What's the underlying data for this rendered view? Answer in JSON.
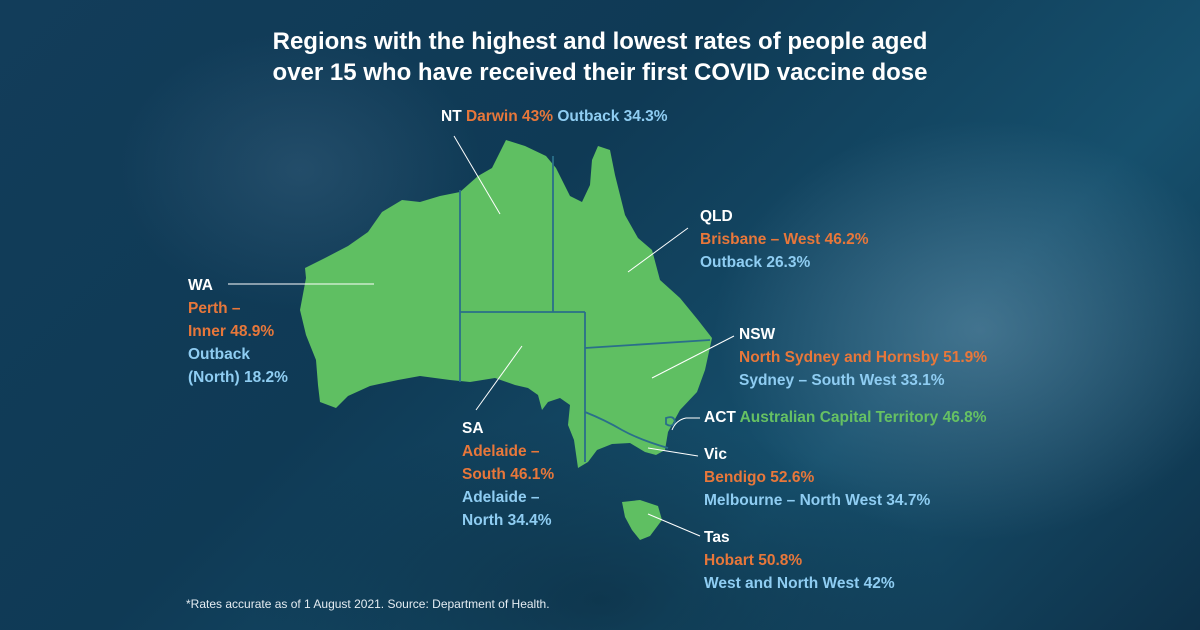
{
  "title": {
    "line1": "Regions with the highest and lowest rates of people aged",
    "line2": "over 15 who have received their first COVID vaccine dose"
  },
  "colors": {
    "land": "#5fbf62",
    "border": "#2a6f8a",
    "highest": "#e8773a",
    "lowest": "#8fcdf2",
    "act": "#66c163",
    "background": "#0f3550"
  },
  "regions": {
    "nt": {
      "state": "NT",
      "highest": "Darwin 43%",
      "lowest": "Outback 34.3%"
    },
    "qld": {
      "state": "QLD",
      "highest": "Brisbane – West 46.2%",
      "lowest": "Outback 26.3%"
    },
    "wa": {
      "state": "WA",
      "highest_l1": "Perth –",
      "highest_l2": "Inner 48.9%",
      "lowest_l1": "Outback",
      "lowest_l2": "(North) 18.2%"
    },
    "nsw": {
      "state": "NSW",
      "highest": "North Sydney and Hornsby 51.9%",
      "lowest": "Sydney – South West 33.1%"
    },
    "act": {
      "state": "ACT",
      "region": "Australian Capital Territory 46.8%"
    },
    "sa": {
      "state": "SA",
      "highest_l1": "Adelaide –",
      "highest_l2": "South 46.1%",
      "lowest_l1": "Adelaide –",
      "lowest_l2": "North 34.4%"
    },
    "vic": {
      "state": "Vic",
      "highest": "Bendigo 52.6%",
      "lowest": "Melbourne – North West 34.7%"
    },
    "tas": {
      "state": "Tas",
      "highest": "Hobart 50.8%",
      "lowest": "West and North West 42%"
    }
  },
  "footnote": "*Rates accurate as of 1 August 2021. Source: Department of Health."
}
